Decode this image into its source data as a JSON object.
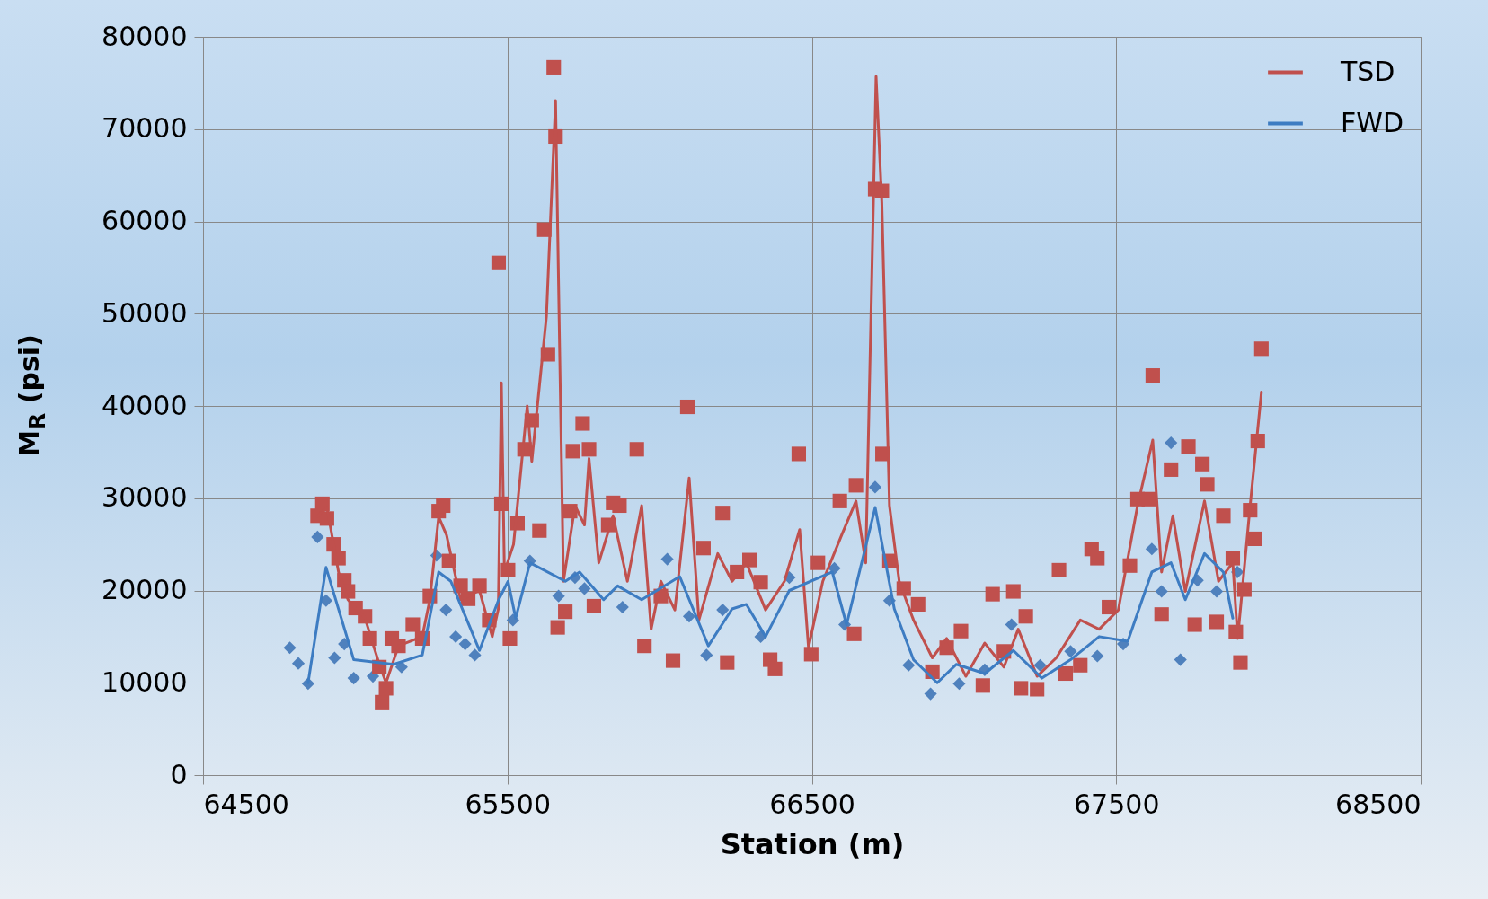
{
  "chart_data": {
    "type": "line",
    "xlabel": "Station (m)",
    "ylabel": "M$_{R}$ (psi)",
    "xlim": [
      64500,
      68500
    ],
    "xticks": [
      64500,
      65500,
      66500,
      67500,
      68500
    ],
    "ylim": [
      0,
      80000
    ],
    "yticks": [
      0,
      10000,
      20000,
      30000,
      40000,
      50000,
      60000,
      70000,
      80000
    ],
    "grid": true,
    "legend": "top right",
    "series": [
      {
        "type": "scatter",
        "marker": "diamond",
        "color": "#4f81bd",
        "x": [
          64785,
          64813,
          64845,
          64876,
          64904,
          64932,
          64964,
          64995,
          65058,
          65152,
          65267,
          65298,
          65330,
          65361,
          65393,
          65518,
          65574,
          65668,
          65722,
          65753,
          65878,
          66025,
          66097,
          66154,
          66207,
          66332,
          66426,
          66574,
          66608,
          66708,
          66755,
          66818,
          66890,
          66984,
          67068,
          67156,
          67250,
          67350,
          67438,
          67523,
          67617,
          67649,
          67680,
          67711,
          67767,
          67830,
          67898
        ],
        "values": [
          13800,
          12100,
          9900,
          25800,
          18900,
          12700,
          14200,
          10500,
          10700,
          11700,
          23800,
          17900,
          15000,
          14200,
          13000,
          16800,
          23200,
          19400,
          21400,
          20200,
          18200,
          23400,
          17200,
          13000,
          17900,
          15000,
          21400,
          22400,
          16300,
          31200,
          18900,
          11900,
          8800,
          9900,
          11400,
          16300,
          11900,
          13400,
          12900,
          14200,
          24500,
          19900,
          36000,
          12500,
          21100,
          19900,
          22000
        ]
      },
      {
        "type": "scatter",
        "marker": "square",
        "color": "#c0504d",
        "x": [
          64876,
          64892,
          64907,
          64929,
          64945,
          64964,
          64976,
          65001,
          65032,
          65048,
          65079,
          65088,
          65101,
          65120,
          65142,
          65189,
          65220,
          65245,
          65274,
          65289,
          65308,
          65346,
          65371,
          65408,
          65440,
          65471,
          65480,
          65502,
          65508,
          65533,
          65556,
          65580,
          65605,
          65621,
          65633,
          65652,
          65658,
          65665,
          65690,
          65706,
          65715,
          65747,
          65768,
          65784,
          65831,
          65847,
          65868,
          65925,
          65950,
          66004,
          66044,
          66091,
          66144,
          66207,
          66222,
          66254,
          66295,
          66332,
          66363,
          66379,
          66457,
          66498,
          66520,
          66592,
          66645,
          66639,
          66708,
          66730,
          66732,
          66755,
          66802,
          66849,
          66896,
          66943,
          66990,
          67062,
          67094,
          67131,
          67162,
          67187,
          67203,
          67240,
          67312,
          67334,
          67382,
          67419,
          67438,
          67476,
          67545,
          67570,
          67607,
          67620,
          67649,
          67680,
          67737,
          67758,
          67783,
          67799,
          67830,
          67852,
          67883,
          67893,
          67908,
          67921,
          67940,
          67955,
          67965,
          67977
        ],
        "values": [
          28100,
          29400,
          27800,
          25000,
          23500,
          21100,
          19900,
          18100,
          17200,
          14800,
          11700,
          7900,
          9400,
          14800,
          14000,
          16300,
          14800,
          19400,
          28600,
          29200,
          23200,
          20500,
          19100,
          20500,
          16800,
          55500,
          29400,
          22200,
          14800,
          27300,
          35300,
          38400,
          26500,
          59100,
          45600,
          76700,
          69200,
          16000,
          17700,
          28600,
          35100,
          38100,
          35300,
          18300,
          27100,
          29500,
          29200,
          35300,
          14000,
          19400,
          12400,
          39900,
          24600,
          28400,
          12200,
          22000,
          23300,
          20900,
          12500,
          11500,
          34800,
          13100,
          23000,
          29700,
          31400,
          15300,
          63500,
          63300,
          34800,
          23200,
          20200,
          18500,
          11200,
          13800,
          15600,
          9700,
          19600,
          13400,
          19900,
          9400,
          17200,
          9300,
          22200,
          11000,
          11900,
          24500,
          23500,
          18200,
          22700,
          29900,
          29900,
          43300,
          17400,
          33100,
          35600,
          16300,
          33700,
          31500,
          16600,
          28100,
          23500,
          15500,
          12200,
          20100,
          28700,
          25600,
          36200,
          46200
        ]
      },
      {
        "name": "TSD",
        "type": "line",
        "color": "#c0504d",
        "x": [
          64876,
          64907,
          64945,
          64976,
          65032,
          65079,
          65101,
          65142,
          65220,
          65245,
          65274,
          65300,
          65346,
          65408,
          65450,
          65470,
          65480,
          65490,
          65520,
          65550,
          65565,
          65580,
          65628,
          65658,
          65684,
          65722,
          65753,
          65768,
          65800,
          65847,
          65894,
          65941,
          65972,
          66004,
          66050,
          66097,
          66129,
          66191,
          66238,
          66285,
          66348,
          66410,
          66460,
          66489,
          66536,
          66599,
          66645,
          66677,
          66711,
          66730,
          66755,
          66787,
          66834,
          66896,
          66943,
          67006,
          67068,
          67131,
          67178,
          67240,
          67303,
          67382,
          67444,
          67507,
          67570,
          67620,
          67649,
          67686,
          67727,
          67790,
          67836,
          67883,
          67899,
          67940,
          67977
        ],
        "values": [
          28000,
          29000,
          22000,
          19000,
          17000,
          12000,
          10000,
          14000,
          15000,
          19000,
          28000,
          26000,
          19000,
          20000,
          15000,
          18000,
          42500,
          22000,
          25000,
          35000,
          40000,
          34000,
          49700,
          73100,
          21000,
          29200,
          27100,
          34300,
          23000,
          28100,
          21000,
          29200,
          15800,
          21000,
          17900,
          32200,
          16800,
          24000,
          21000,
          23000,
          17900,
          21000,
          26600,
          13800,
          21000,
          26100,
          29700,
          23000,
          75700,
          62000,
          29200,
          21000,
          16800,
          12700,
          14800,
          10700,
          14300,
          11700,
          15800,
          10700,
          12700,
          16800,
          15800,
          17900,
          29200,
          36300,
          22000,
          28100,
          19900,
          29700,
          21000,
          23000,
          14800,
          29200,
          41500
        ]
      },
      {
        "name": "FWD",
        "type": "line",
        "color": "#3d7cc2",
        "x": [
          64845,
          64904,
          64995,
          65126,
          65220,
          65274,
          65314,
          65377,
          65408,
          65471,
          65502,
          65527,
          65574,
          65690,
          65737,
          65816,
          65862,
          65941,
          66066,
          66160,
          66238,
          66285,
          66348,
          66426,
          66567,
          66614,
          66708,
          66771,
          66834,
          66912,
          66975,
          67068,
          67162,
          67256,
          67350,
          67444,
          67538,
          67617,
          67680,
          67727,
          67790,
          67852,
          67883
        ],
        "values": [
          10000,
          22500,
          12500,
          12000,
          13000,
          22000,
          21000,
          16000,
          13500,
          19000,
          21000,
          17000,
          23000,
          21000,
          22000,
          19000,
          20500,
          19000,
          21500,
          14000,
          18000,
          18500,
          15000,
          20000,
          22000,
          16300,
          29000,
          18000,
          12500,
          10000,
          12000,
          11000,
          13500,
          10500,
          12500,
          15000,
          14500,
          22000,
          23000,
          19000,
          24000,
          22000,
          17000
        ]
      }
    ]
  }
}
